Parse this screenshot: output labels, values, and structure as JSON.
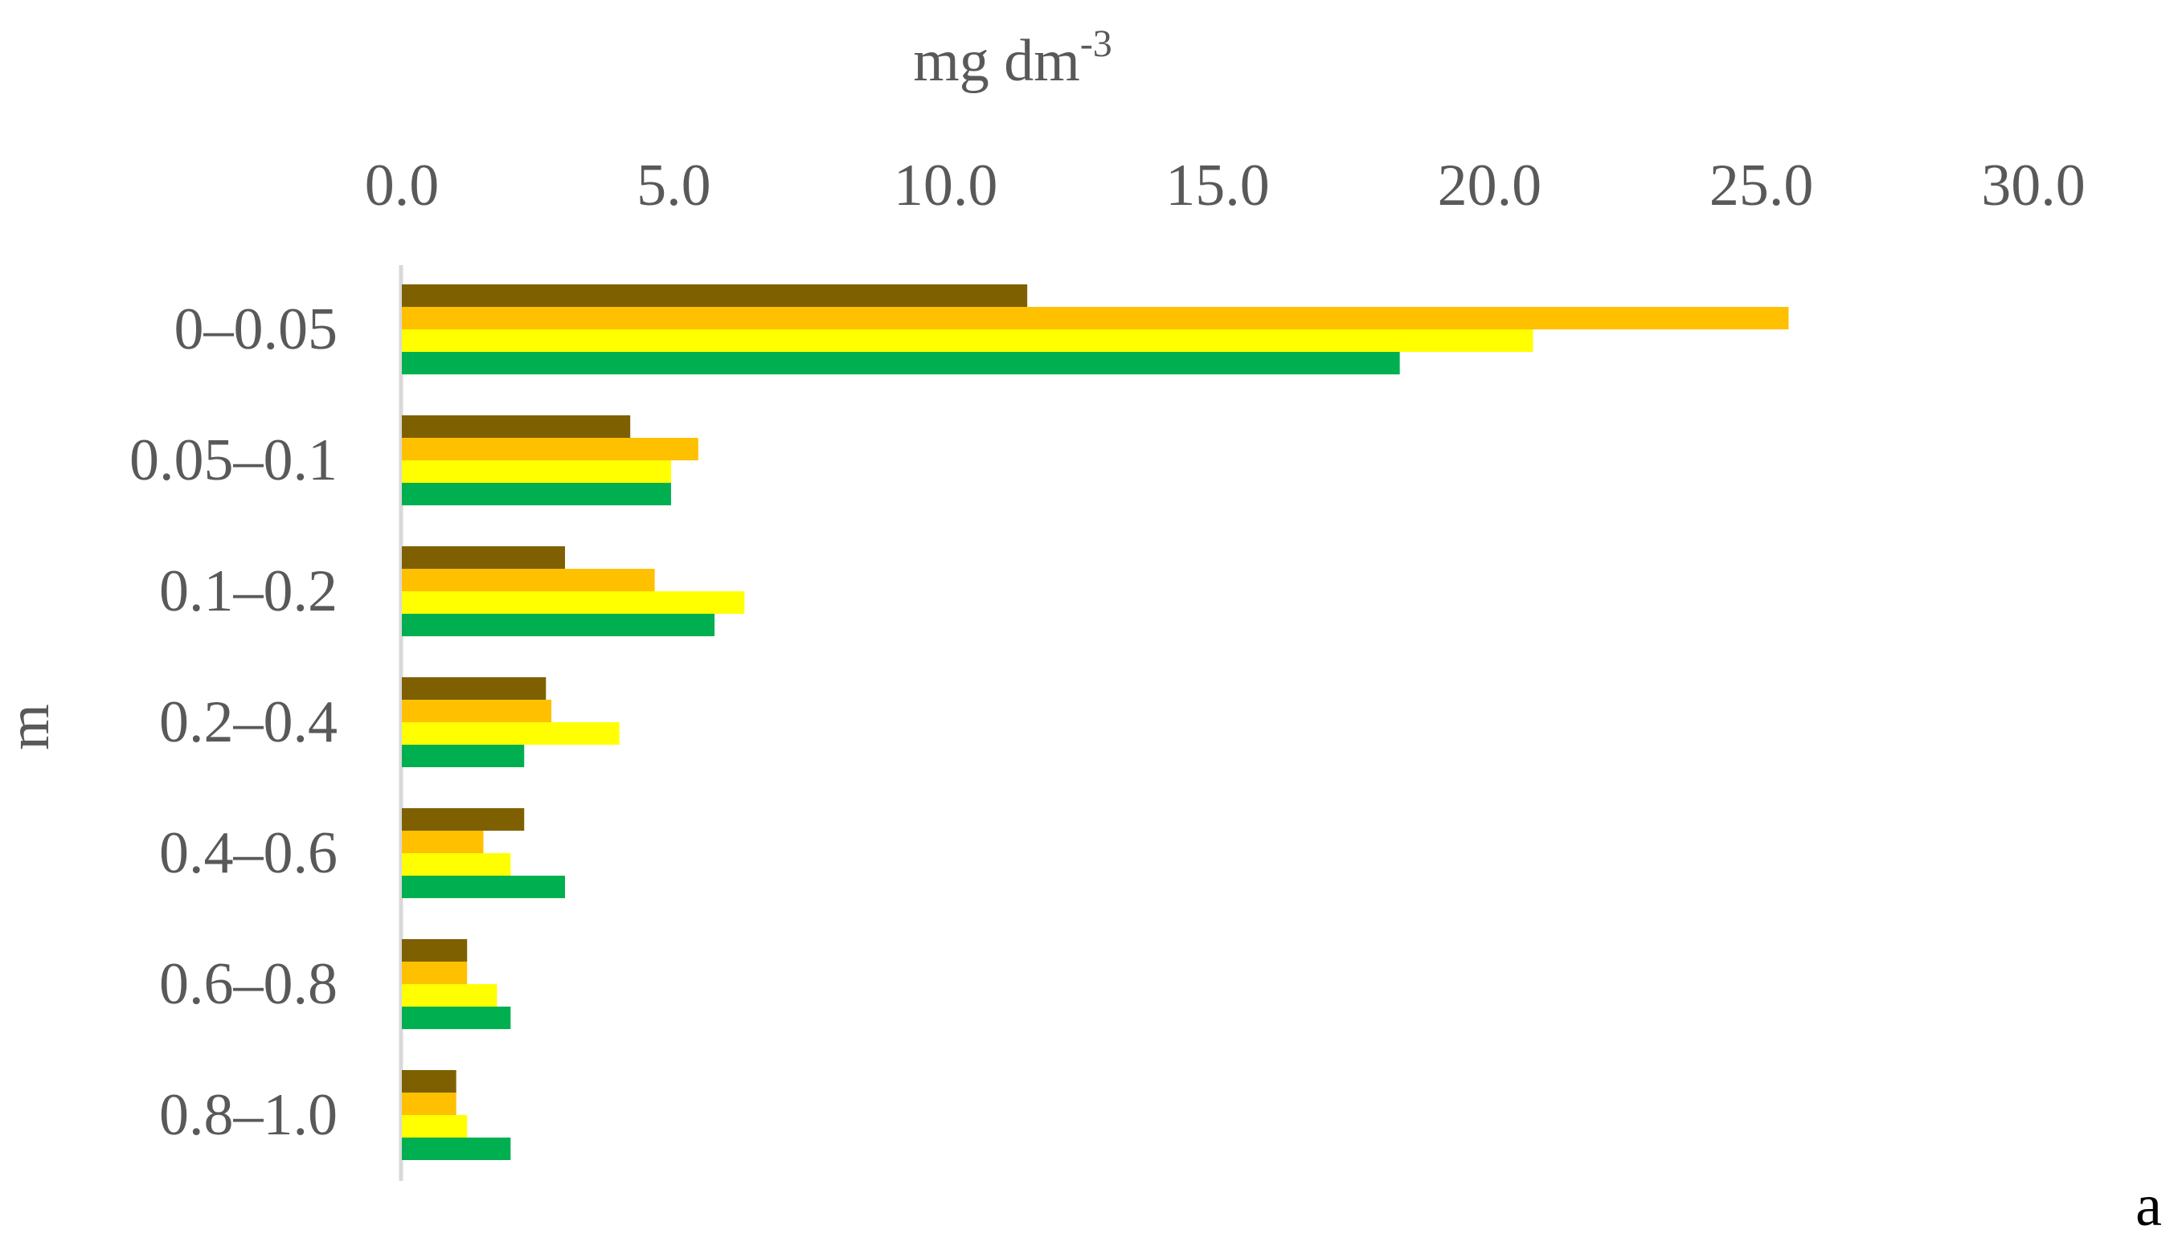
{
  "chart_data": {
    "type": "bar",
    "orientation": "horizontal",
    "xlabel": "mg dm-3",
    "xlabel_main": "mg dm",
    "xlabel_superscript": "-3",
    "ylabel": "m",
    "corner_label": "a",
    "xlim": [
      0,
      30
    ],
    "x_tick_labels": [
      "0.0",
      "5.0",
      "10.0",
      "15.0",
      "20.0",
      "25.0",
      "30.0"
    ],
    "x_axis_position": "top",
    "grid": false,
    "categories": [
      "0–0.05",
      "0.05–0.1",
      "0.1–0.2",
      "0.2–0.4",
      "0.4–0.6",
      "0.6–0.8",
      "0.8–1.0"
    ],
    "series": [
      {
        "color": "#7f6000",
        "values": [
          11.5,
          4.2,
          3.0,
          2.65,
          2.25,
          1.2,
          1.0
        ]
      },
      {
        "color": "#ffc000",
        "values": [
          25.5,
          5.45,
          4.65,
          2.75,
          1.5,
          1.2,
          1.0
        ]
      },
      {
        "color": "#ffff00",
        "values": [
          20.8,
          4.95,
          6.3,
          4.0,
          2.0,
          1.75,
          1.2
        ]
      },
      {
        "color": "#00b050",
        "values": [
          18.35,
          4.95,
          5.75,
          2.25,
          3.0,
          2.0,
          2.0
        ]
      }
    ]
  }
}
